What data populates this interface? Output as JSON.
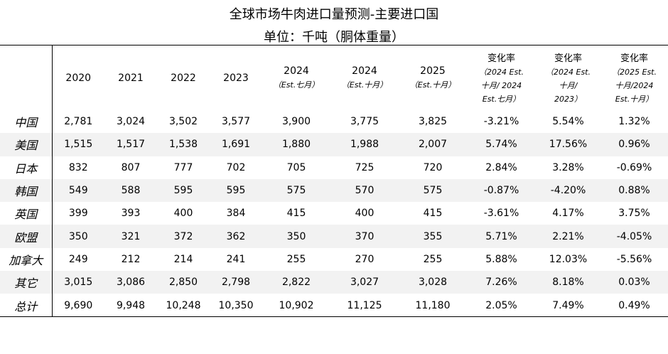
{
  "title": "全球市场牛肉进口量预测-主要进口国",
  "subtitle": "单位：千吨（胴体重量）",
  "headers": {
    "years": [
      {
        "year": "2020",
        "note": ""
      },
      {
        "year": "2021",
        "note": ""
      },
      {
        "year": "2022",
        "note": ""
      },
      {
        "year": "2023",
        "note": ""
      },
      {
        "year": "2024",
        "note": "（Est.七月）"
      },
      {
        "year": "2024",
        "note": "（Est.十月）"
      },
      {
        "year": "2025",
        "note": "（Est.十月）"
      }
    ],
    "changes": [
      {
        "title": "变化率",
        "sub": [
          "（2024 Est.",
          "十月/ 2024",
          "Est.七月）"
        ]
      },
      {
        "title": "变化率",
        "sub": [
          "（2024 Est.",
          "十月/",
          "2023）"
        ]
      },
      {
        "title": "变化率",
        "sub": [
          "（2025 Est.",
          "十月/2024",
          "Est.十月）"
        ]
      }
    ]
  },
  "rows": [
    {
      "country": "中国",
      "values": [
        "2,781",
        "3,024",
        "3,502",
        "3,577",
        "3,900",
        "3,775",
        "3,825",
        "-3.21%",
        "5.54%",
        "1.32%"
      ]
    },
    {
      "country": "美国",
      "values": [
        "1,515",
        "1,517",
        "1,538",
        "1,691",
        "1,880",
        "1,988",
        "2,007",
        "5.74%",
        "17.56%",
        "0.96%"
      ]
    },
    {
      "country": "日本",
      "values": [
        "832",
        "807",
        "777",
        "702",
        "705",
        "725",
        "720",
        "2.84%",
        "3.28%",
        "-0.69%"
      ]
    },
    {
      "country": "韩国",
      "values": [
        "549",
        "588",
        "595",
        "595",
        "575",
        "570",
        "575",
        "-0.87%",
        "-4.20%",
        "0.88%"
      ]
    },
    {
      "country": "英国",
      "values": [
        "399",
        "393",
        "400",
        "384",
        "415",
        "400",
        "415",
        "-3.61%",
        "4.17%",
        "3.75%"
      ]
    },
    {
      "country": "欧盟",
      "values": [
        "350",
        "321",
        "372",
        "362",
        "350",
        "370",
        "355",
        "5.71%",
        "2.21%",
        "-4.05%"
      ]
    },
    {
      "country": "加拿大",
      "values": [
        "249",
        "212",
        "214",
        "241",
        "255",
        "270",
        "255",
        "5.88%",
        "12.03%",
        "-5.56%"
      ]
    },
    {
      "country": "其它",
      "values": [
        "3,015",
        "3,086",
        "2,850",
        "2,798",
        "2,822",
        "3,027",
        "3,028",
        "7.26%",
        "8.18%",
        "0.03%"
      ]
    },
    {
      "country": "总计",
      "values": [
        "9,690",
        "9,948",
        "10,248",
        "10,350",
        "10,902",
        "11,125",
        "11,180",
        "2.05%",
        "7.49%",
        "0.49%"
      ]
    }
  ]
}
